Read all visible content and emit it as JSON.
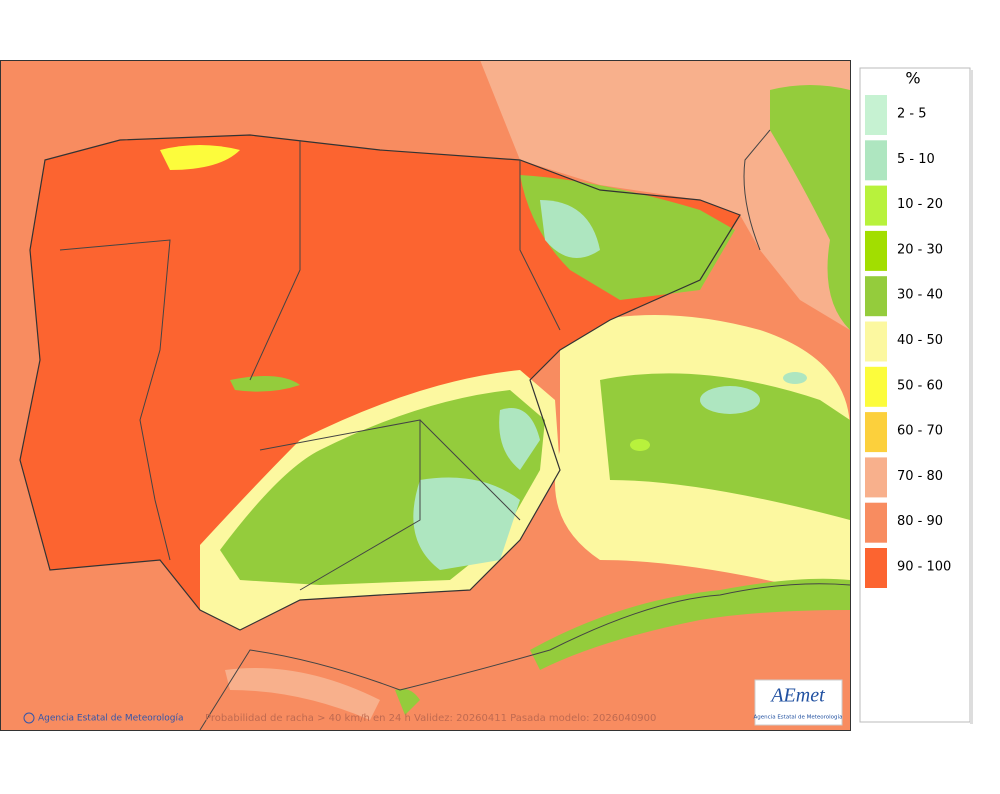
{
  "legend": {
    "title": "%",
    "items": [
      {
        "label": "2 - 5",
        "color": "#c6f2d2"
      },
      {
        "label": "5 - 10",
        "color": "#aee6c0"
      },
      {
        "label": "10 - 20",
        "color": "#b8f23c"
      },
      {
        "label": "20 - 30",
        "color": "#a2de00"
      },
      {
        "label": "30 - 40",
        "color": "#94cc3c"
      },
      {
        "label": "40 - 50",
        "color": "#fcf8a0"
      },
      {
        "label": "50 - 60",
        "color": "#fcfc3c"
      },
      {
        "label": "60 - 70",
        "color": "#fcd03c"
      },
      {
        "label": "70 - 80",
        "color": "#f8b08c"
      },
      {
        "label": "80 - 90",
        "color": "#f88c60"
      },
      {
        "label": "90 - 100",
        "color": "#fc6430"
      }
    ]
  },
  "footer": {
    "credit": "Agencia Estatal de Meteorología",
    "caption": "Probabilidad de racha > 40 km/h en 24 h  Validez: 20260411  Pasada modelo: 2026040900"
  },
  "logo": {
    "text": "AEmet",
    "subtitle": "Agencia Estatal de Meteorología"
  }
}
